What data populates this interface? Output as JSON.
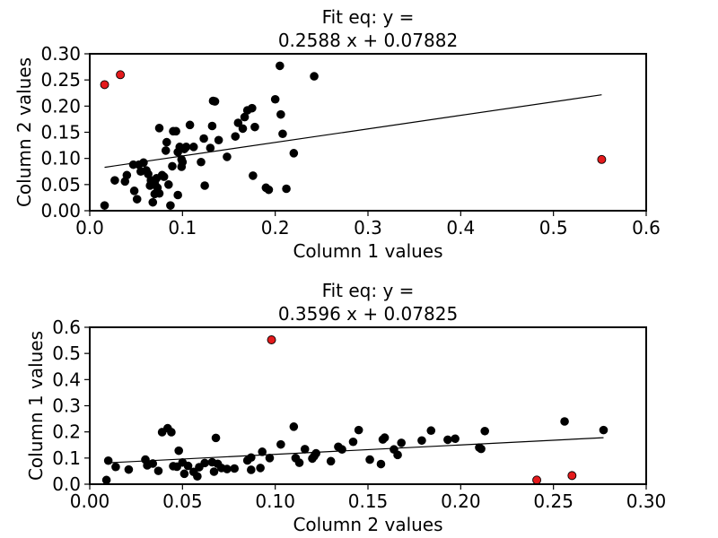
{
  "chart_data": [
    {
      "type": "scatter",
      "title": [
        "Fit eq: y =",
        "0.2588 x + 0.07882"
      ],
      "xlabel": "Column 1 values",
      "ylabel": "Column 2 values",
      "xlim": [
        0.0,
        0.6
      ],
      "ylim": [
        0.0,
        0.3
      ],
      "xticks": [
        "0.0",
        "0.1",
        "0.2",
        "0.3",
        "0.4",
        "0.5",
        "0.6"
      ],
      "yticks": [
        "0.00",
        "0.05",
        "0.10",
        "0.15",
        "0.20",
        "0.25",
        "0.30"
      ],
      "fit": {
        "slope": 0.2588,
        "intercept": 0.07882,
        "x_range": [
          0.016,
          0.552
        ]
      },
      "colors": {
        "normal": "#000000",
        "outlier": "#e41a1c"
      },
      "series": [
        {
          "values": [
            [
              0.016,
              0.01
            ],
            [
              0.027,
              0.058
            ],
            [
              0.038,
              0.056
            ],
            [
              0.04,
              0.068
            ],
            [
              0.047,
              0.088
            ],
            [
              0.048,
              0.038
            ],
            [
              0.051,
              0.022
            ],
            [
              0.053,
              0.088
            ],
            [
              0.055,
              0.075
            ],
            [
              0.058,
              0.092
            ],
            [
              0.061,
              0.077
            ],
            [
              0.063,
              0.07
            ],
            [
              0.065,
              0.048
            ],
            [
              0.066,
              0.058
            ],
            [
              0.068,
              0.016
            ],
            [
              0.07,
              0.032
            ],
            [
              0.07,
              0.052
            ],
            [
              0.072,
              0.062
            ],
            [
              0.073,
              0.044
            ],
            [
              0.075,
              0.158
            ],
            [
              0.075,
              0.033
            ],
            [
              0.078,
              0.068
            ],
            [
              0.08,
              0.065
            ],
            [
              0.082,
              0.115
            ],
            [
              0.083,
              0.131
            ],
            [
              0.085,
              0.05
            ],
            [
              0.087,
              0.01
            ],
            [
              0.089,
              0.085
            ],
            [
              0.09,
              0.152
            ],
            [
              0.093,
              0.152
            ],
            [
              0.095,
              0.03
            ],
            [
              0.095,
              0.112
            ],
            [
              0.097,
              0.122
            ],
            [
              0.099,
              0.098
            ],
            [
              0.099,
              0.084
            ],
            [
              0.1,
              0.093
            ],
            [
              0.102,
              0.118
            ],
            [
              0.104,
              0.122
            ],
            [
              0.108,
              0.164
            ],
            [
              0.112,
              0.122
            ],
            [
              0.12,
              0.093
            ],
            [
              0.123,
              0.138
            ],
            [
              0.124,
              0.048
            ],
            [
              0.13,
              0.12
            ],
            [
              0.132,
              0.162
            ],
            [
              0.133,
              0.21
            ],
            [
              0.135,
              0.209
            ],
            [
              0.139,
              0.135
            ],
            [
              0.148,
              0.103
            ],
            [
              0.157,
              0.142
            ],
            [
              0.16,
              0.168
            ],
            [
              0.165,
              0.157
            ],
            [
              0.167,
              0.179
            ],
            [
              0.17,
              0.192
            ],
            [
              0.175,
              0.196
            ],
            [
              0.176,
              0.067
            ],
            [
              0.178,
              0.16
            ],
            [
              0.19,
              0.044
            ],
            [
              0.193,
              0.04
            ],
            [
              0.2,
              0.213
            ],
            [
              0.205,
              0.277
            ],
            [
              0.206,
              0.184
            ],
            [
              0.208,
              0.147
            ],
            [
              0.212,
              0.042
            ],
            [
              0.22,
              0.11
            ],
            [
              0.242,
              0.257
            ]
          ]
        },
        {
          "outlier": true,
          "values": [
            [
              0.016,
              0.241
            ],
            [
              0.033,
              0.26
            ],
            [
              0.552,
              0.098
            ]
          ]
        }
      ]
    },
    {
      "type": "scatter",
      "title": [
        "Fit eq: y =",
        "0.3596 x + 0.07825"
      ],
      "xlabel": "Column 2 values",
      "ylabel": "Column 1 values",
      "xlim": [
        0.0,
        0.3
      ],
      "ylim": [
        0.0,
        0.6
      ],
      "xticks": [
        "0.00",
        "0.05",
        "0.10",
        "0.15",
        "0.20",
        "0.25",
        "0.30"
      ],
      "yticks": [
        "0.0",
        "0.1",
        "0.2",
        "0.3",
        "0.4",
        "0.5",
        "0.6"
      ],
      "fit": {
        "slope": 0.3596,
        "intercept": 0.07825,
        "x_range": [
          0.009,
          0.277
        ]
      },
      "colors": {
        "normal": "#000000",
        "outlier": "#e41a1c"
      },
      "series": [
        {
          "values": [
            [
              0.009,
              0.016
            ],
            [
              0.01,
              0.09
            ],
            [
              0.014,
              0.066
            ],
            [
              0.021,
              0.056
            ],
            [
              0.03,
              0.094
            ],
            [
              0.031,
              0.072
            ],
            [
              0.034,
              0.079
            ],
            [
              0.037,
              0.051
            ],
            [
              0.039,
              0.199
            ],
            [
              0.042,
              0.214
            ],
            [
              0.044,
              0.199
            ],
            [
              0.045,
              0.069
            ],
            [
              0.047,
              0.067
            ],
            [
              0.048,
              0.128
            ],
            [
              0.05,
              0.083
            ],
            [
              0.051,
              0.04
            ],
            [
              0.053,
              0.07
            ],
            [
              0.056,
              0.047
            ],
            [
              0.058,
              0.03
            ],
            [
              0.059,
              0.065
            ],
            [
              0.062,
              0.081
            ],
            [
              0.066,
              0.084
            ],
            [
              0.067,
              0.048
            ],
            [
              0.068,
              0.177
            ],
            [
              0.069,
              0.078
            ],
            [
              0.071,
              0.062
            ],
            [
              0.074,
              0.058
            ],
            [
              0.078,
              0.06
            ],
            [
              0.085,
              0.091
            ],
            [
              0.087,
              0.102
            ],
            [
              0.087,
              0.055
            ],
            [
              0.092,
              0.062
            ],
            [
              0.093,
              0.124
            ],
            [
              0.097,
              0.1
            ],
            [
              0.103,
              0.152
            ],
            [
              0.11,
              0.22
            ],
            [
              0.111,
              0.1
            ],
            [
              0.113,
              0.082
            ],
            [
              0.116,
              0.134
            ],
            [
              0.12,
              0.098
            ],
            [
              0.121,
              0.107
            ],
            [
              0.122,
              0.118
            ],
            [
              0.13,
              0.088
            ],
            [
              0.134,
              0.143
            ],
            [
              0.136,
              0.133
            ],
            [
              0.142,
              0.162
            ],
            [
              0.145,
              0.207
            ],
            [
              0.151,
              0.094
            ],
            [
              0.157,
              0.077
            ],
            [
              0.158,
              0.171
            ],
            [
              0.159,
              0.178
            ],
            [
              0.164,
              0.133
            ],
            [
              0.166,
              0.112
            ],
            [
              0.168,
              0.158
            ],
            [
              0.179,
              0.167
            ],
            [
              0.184,
              0.205
            ],
            [
              0.193,
              0.17
            ],
            [
              0.197,
              0.174
            ],
            [
              0.21,
              0.14
            ],
            [
              0.211,
              0.135
            ],
            [
              0.213,
              0.203
            ],
            [
              0.256,
              0.24
            ],
            [
              0.277,
              0.207
            ]
          ]
        },
        {
          "outlier": true,
          "values": [
            [
              0.098,
              0.552
            ],
            [
              0.241,
              0.016
            ],
            [
              0.26,
              0.033
            ]
          ]
        }
      ]
    }
  ]
}
